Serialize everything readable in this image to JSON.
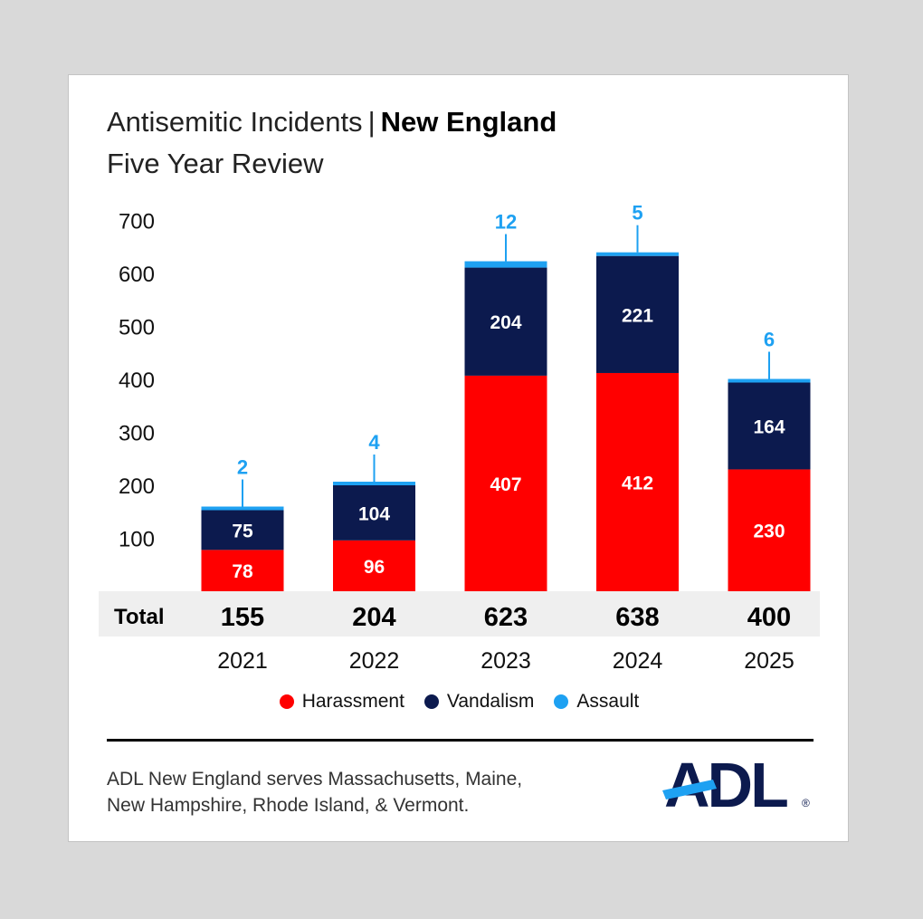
{
  "title": {
    "part1": "Antisemitic Incidents",
    "separator": "|",
    "part2": "New England",
    "subtitle": "Five Year Review"
  },
  "chart_data": {
    "type": "bar",
    "stacked": true,
    "categories": [
      "2021",
      "2022",
      "2023",
      "2024",
      "2025"
    ],
    "series": [
      {
        "name": "Harassment",
        "values": [
          78,
          96,
          407,
          412,
          230
        ],
        "color": "#ff0000"
      },
      {
        "name": "Vandalism",
        "values": [
          75,
          104,
          204,
          221,
          164
        ],
        "color": "#0c1a4e"
      },
      {
        "name": "Assault",
        "values": [
          2,
          4,
          12,
          5,
          6
        ],
        "color": "#1ea1f2"
      }
    ],
    "totals": [
      155,
      204,
      623,
      638,
      400
    ],
    "total_label": "Total",
    "yticks": [
      100,
      200,
      300,
      400,
      500,
      600,
      700
    ],
    "ylim": [
      0,
      700
    ],
    "legend_position": "bottom",
    "grid": false
  },
  "footer": {
    "line1": "ADL New England serves Massachusetts, Maine,",
    "line2": "New Hampshire, Rhode Island, & Vermont."
  },
  "logo": {
    "text": "ADL",
    "color": "#0c1a4e",
    "accent": "#1ea1f2"
  }
}
